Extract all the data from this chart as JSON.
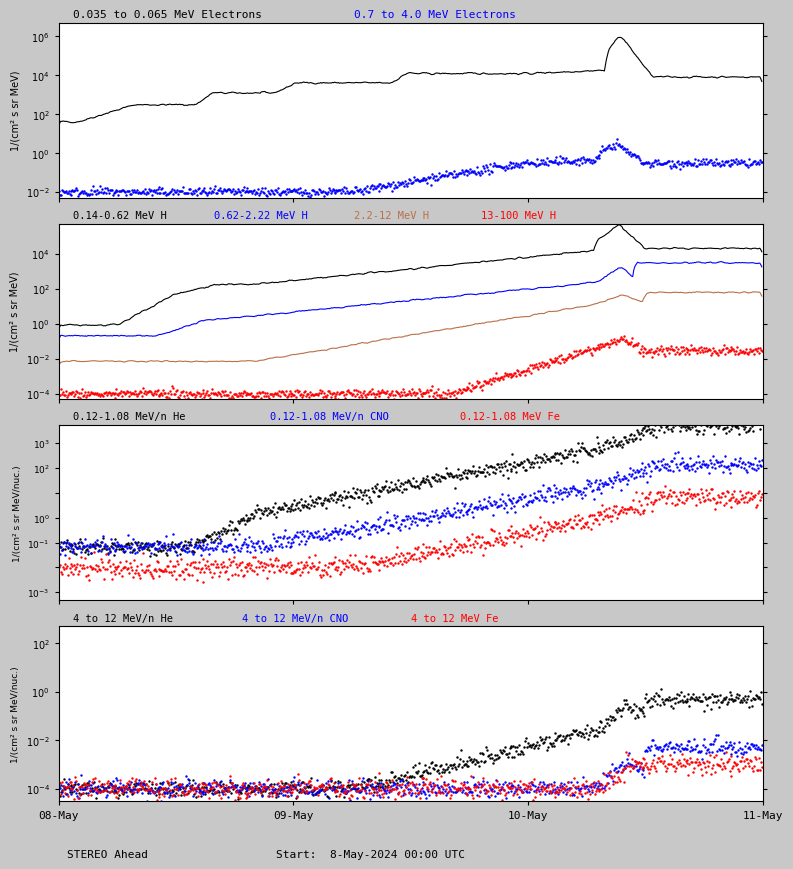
{
  "title_panel1_black": "0.035 to 0.065 MeV Electrons",
  "title_panel1_blue": "0.7 to 4.0 MeV Electrons",
  "title_panel2": [
    "0.14-0.62 MeV H",
    "0.62-2.22 MeV H",
    "2.2-12 MeV H",
    "13-100 MeV H"
  ],
  "title_panel2_colors": [
    "black",
    "blue",
    "#b87048",
    "red"
  ],
  "title_panel3": [
    "0.12-1.08 MeV/n He",
    "0.12-1.08 MeV/n CNO",
    "0.12-1.08 MeV Fe"
  ],
  "title_panel3_colors": [
    "black",
    "blue",
    "red"
  ],
  "title_panel4": [
    "4 to 12 MeV/n He",
    "4 to 12 MeV/n CNO",
    "4 to 12 MeV Fe"
  ],
  "title_panel4_colors": [
    "black",
    "blue",
    "red"
  ],
  "ylabel_electrons": "1/(cm² s sr MeV)",
  "ylabel_protons": "1/(cm² s sr MeV)",
  "ylabel_heavy1": "1/(cm² s sr MeV/nuc.)",
  "ylabel_heavy2": "1/(cm² s sr MeV/nuc.)",
  "xlabel_left": "08-May",
  "xlabel_mid1": "09-May",
  "xlabel_mid2": "10-May",
  "xlabel_right": "11-May",
  "label_bottom_left": "STEREO Ahead",
  "label_bottom_center": "Start:  8-May-2024 00:00 UTC",
  "fig_bg": "#c8c8c8",
  "panel_bg": "white",
  "seed": 42,
  "t_hours": 72,
  "dt": 0.1
}
